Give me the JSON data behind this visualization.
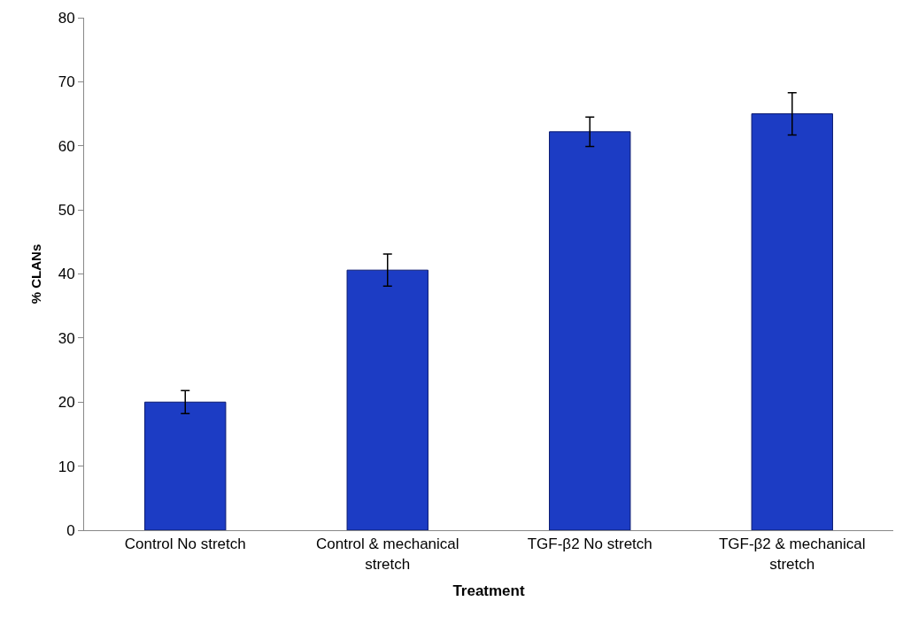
{
  "chart_data": {
    "type": "bar",
    "xlabel": "Treatment",
    "ylabel": "% CLANs",
    "categories": [
      "Control No stretch",
      "Control & mechanical stretch",
      "TGF-β2 No stretch",
      "TGF-β2 & mechanical stretch"
    ],
    "values": [
      20,
      40.6,
      62.2,
      65
    ],
    "errors": [
      1.8,
      2.5,
      2.3,
      3.3
    ],
    "color": "#1c3cc4",
    "ylim": [
      0,
      80
    ],
    "yticks": [
      0,
      10,
      20,
      30,
      40,
      50,
      60,
      70,
      80
    ]
  }
}
